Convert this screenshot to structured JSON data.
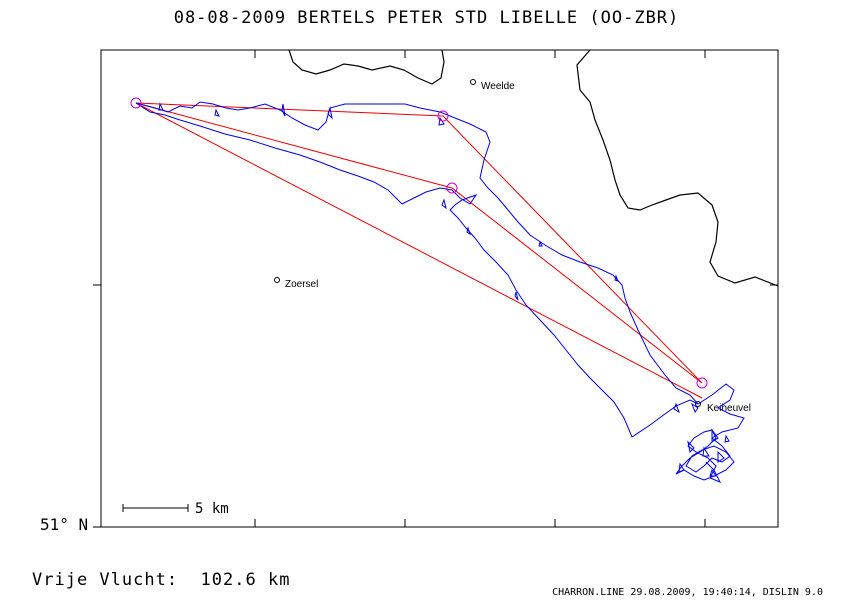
{
  "title": "08-08-2009    BERTELS PETER    STD LIBELLE (OO-ZBR)",
  "places": [
    {
      "name": "Weelde"
    },
    {
      "name": "Zoersel"
    },
    {
      "name": "Keiheuvel"
    }
  ],
  "latitude_label": "51° N",
  "scale_label": "5 km",
  "distance": {
    "label": "Vrije Vlucht:",
    "value": "102.6 km"
  },
  "footer": "CHARRON.LINE 29.08.2009, 19:40:14, DISLIN 9.0",
  "colors": {
    "track": "#0000ee",
    "task": "#ee0000",
    "turnpoint": "#cc00cc",
    "border": "#000000"
  }
}
